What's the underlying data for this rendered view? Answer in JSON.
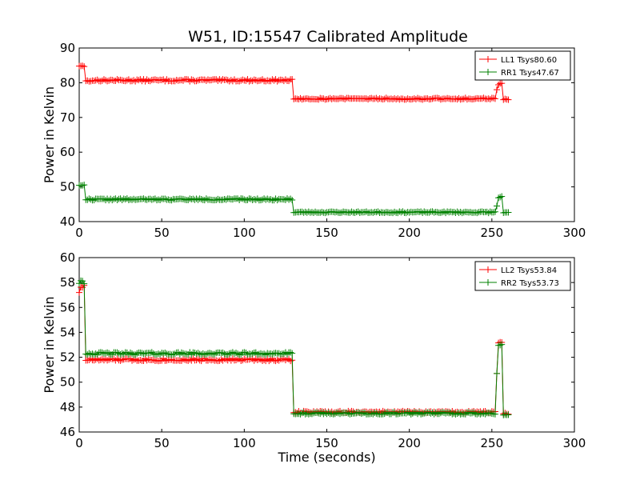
{
  "figure": {
    "title": "W51, ID:15547 Calibrated Amplitude"
  },
  "chart_data": [
    {
      "type": "line",
      "title": "W51, ID:15547 Calibrated Amplitude",
      "xlabel": "",
      "ylabel": "Power in Kelvin",
      "xlim": [
        0,
        300
      ],
      "ylim": [
        40,
        90
      ],
      "xticks": [
        "0",
        "50",
        "100",
        "150",
        "200",
        "250",
        "300"
      ],
      "yticks": [
        "40",
        "50",
        "60",
        "70",
        "80",
        "90"
      ],
      "grid": false,
      "legend_position": "top-right",
      "series": [
        {
          "name": "LL1 Tsys80.60",
          "color": "#ff0000",
          "marker": "plus",
          "segments": [
            {
              "x_start": 0,
              "x_end": 3,
              "level": 85,
              "noise": 0.4,
              "seed": 11
            },
            {
              "x_start": 4,
              "x_end": 8,
              "level": 80.7,
              "noise": 0.35,
              "seed": 12
            },
            {
              "x_start": 9,
              "x_end": 129,
              "level": 80.7,
              "noise": 0.3,
              "seed": 13
            },
            {
              "x_start": 130,
              "x_end": 252,
              "level": 75.4,
              "noise": 0.25,
              "seed": 14
            },
            {
              "x_start": 253,
              "x_end": 253,
              "level": 78.0,
              "noise": 0,
              "seed": 15
            },
            {
              "x_start": 254,
              "x_end": 256,
              "level": 79.6,
              "noise": 0.4,
              "seed": 16
            },
            {
              "x_start": 257,
              "x_end": 260,
              "level": 75.2,
              "noise": 0.2,
              "seed": 17
            }
          ]
        },
        {
          "name": "RR1 Tsys47.67",
          "color": "#008000",
          "marker": "plus",
          "segments": [
            {
              "x_start": 0,
              "x_end": 3,
              "level": 50.6,
              "noise": 0.3,
              "seed": 21
            },
            {
              "x_start": 4,
              "x_end": 129,
              "level": 46.4,
              "noise": 0.25,
              "seed": 22
            },
            {
              "x_start": 130,
              "x_end": 252,
              "level": 42.7,
              "noise": 0.2,
              "seed": 23
            },
            {
              "x_start": 253,
              "x_end": 253,
              "level": 44.5,
              "noise": 0,
              "seed": 24
            },
            {
              "x_start": 254,
              "x_end": 256,
              "level": 47.0,
              "noise": 0.3,
              "seed": 25
            },
            {
              "x_start": 257,
              "x_end": 260,
              "level": 42.6,
              "noise": 0.15,
              "seed": 26
            }
          ]
        }
      ]
    },
    {
      "type": "line",
      "title": "",
      "xlabel": "Time (seconds)",
      "ylabel": "Power in Kelvin",
      "xlim": [
        0,
        300
      ],
      "ylim": [
        46,
        60
      ],
      "xticks": [
        "0",
        "50",
        "100",
        "150",
        "200",
        "250",
        "300"
      ],
      "yticks": [
        "46",
        "48",
        "50",
        "52",
        "54",
        "56",
        "58",
        "60"
      ],
      "grid": false,
      "legend_position": "top-right",
      "series": [
        {
          "name": "LL2 Tsys53.84",
          "color": "#ff0000",
          "marker": "plus",
          "segments": [
            {
              "x_start": 0,
              "x_end": 0,
              "level": 57.2,
              "noise": 0,
              "seed": 31
            },
            {
              "x_start": 1,
              "x_end": 3,
              "level": 57.7,
              "noise": 0.15,
              "seed": 32
            },
            {
              "x_start": 4,
              "x_end": 129,
              "level": 51.8,
              "noise": 0.1,
              "seed": 33
            },
            {
              "x_start": 130,
              "x_end": 252,
              "level": 47.6,
              "noise": 0.08,
              "seed": 34
            },
            {
              "x_start": 253,
              "x_end": 253,
              "level": 50.7,
              "noise": 0,
              "seed": 35
            },
            {
              "x_start": 254,
              "x_end": 256,
              "level": 53.2,
              "noise": 0.1,
              "seed": 36
            },
            {
              "x_start": 257,
              "x_end": 260,
              "level": 47.5,
              "noise": 0.08,
              "seed": 37
            }
          ]
        },
        {
          "name": "RR2 Tsys53.73",
          "color": "#008000",
          "marker": "plus",
          "segments": [
            {
              "x_start": 0,
              "x_end": 3,
              "level": 58.0,
              "noise": 0.15,
              "seed": 41
            },
            {
              "x_start": 4,
              "x_end": 129,
              "level": 52.3,
              "noise": 0.1,
              "seed": 42
            },
            {
              "x_start": 130,
              "x_end": 252,
              "level": 47.5,
              "noise": 0.08,
              "seed": 43
            },
            {
              "x_start": 253,
              "x_end": 253,
              "level": 50.7,
              "noise": 0,
              "seed": 44
            },
            {
              "x_start": 254,
              "x_end": 256,
              "level": 53.0,
              "noise": 0.1,
              "seed": 45
            },
            {
              "x_start": 257,
              "x_end": 260,
              "level": 47.4,
              "noise": 0.08,
              "seed": 46
            }
          ]
        }
      ]
    }
  ]
}
